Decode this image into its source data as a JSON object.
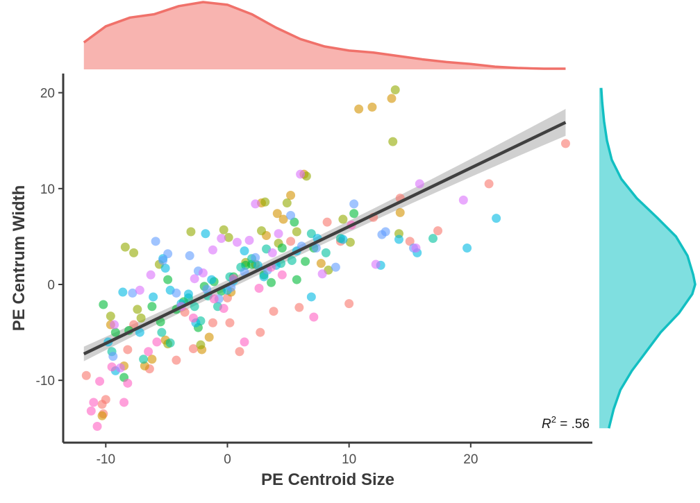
{
  "chart_data": {
    "type": "scatter",
    "xlabel": "PE Centroid Size",
    "ylabel": "PE Centrum Width",
    "xlim": [
      -13.5,
      30
    ],
    "ylim": [
      -16.5,
      22
    ],
    "x_ticks": [
      -10,
      0,
      10,
      20
    ],
    "x_tick_labels": [
      "-10",
      "0",
      "10",
      "20"
    ],
    "y_ticks": [
      -10,
      0,
      10,
      20
    ],
    "y_tick_labels": [
      "-10",
      "0",
      "10",
      "20"
    ],
    "grid": false,
    "legend": "none",
    "annotation": {
      "prefix": "R",
      "superscript": "2",
      "suffix": " = .56"
    },
    "regression": {
      "x_range": [
        -11.8,
        27.8
      ],
      "intercept": -0.05,
      "slope": 0.61,
      "ci_halfwidth_at_ends": 1.4,
      "ci_halfwidth_at_mean": 0.5,
      "color": "#404040",
      "ci_color": "#c8c8c8"
    },
    "marginal_x": {
      "type": "density",
      "fill": "#f8b4b0",
      "stroke": "#f0716a",
      "x": [
        -11.8,
        -10,
        -8,
        -6,
        -4,
        -2,
        0,
        2,
        4,
        6,
        8,
        10,
        12,
        14,
        16,
        18,
        20,
        22,
        24,
        26,
        27.8
      ],
      "density": [
        0.4,
        0.64,
        0.77,
        0.82,
        0.94,
        1.0,
        0.96,
        0.82,
        0.62,
        0.45,
        0.34,
        0.28,
        0.25,
        0.2,
        0.15,
        0.11,
        0.08,
        0.04,
        0.02,
        0.01,
        0.01
      ]
    },
    "marginal_y": {
      "type": "density",
      "fill": "#7fdfe0",
      "stroke": "#12bfc2",
      "y": [
        20.5,
        19,
        17,
        15,
        13,
        11,
        9,
        7,
        5,
        3,
        1,
        0,
        -1,
        -3,
        -5,
        -7,
        -9,
        -11,
        -13,
        -15
      ],
      "density": [
        0.02,
        0.03,
        0.05,
        0.08,
        0.13,
        0.23,
        0.39,
        0.6,
        0.8,
        0.92,
        0.98,
        1.0,
        0.97,
        0.83,
        0.64,
        0.49,
        0.34,
        0.22,
        0.15,
        0.1
      ]
    },
    "point_colors": [
      "#f8766d",
      "#d39200",
      "#93aa00",
      "#00ba38",
      "#00c19f",
      "#00b9e3",
      "#619cff",
      "#db72fb",
      "#ff61c3"
    ],
    "series": [
      {
        "name": "",
        "points": [
          [
            -11.6,
            -9.5
          ],
          [
            -10.3,
            -12.5
          ],
          [
            -10.0,
            -12.0
          ],
          [
            -10.2,
            -13.5
          ],
          [
            -8.2,
            -6.8
          ],
          [
            -7.7,
            -4.2
          ],
          [
            -6.4,
            -8.8
          ],
          [
            -4.2,
            -7.9
          ],
          [
            -3.5,
            -2.9
          ],
          [
            -2.8,
            -6.7
          ],
          [
            -1.2,
            -4.0
          ],
          [
            0.0,
            -1.4
          ],
          [
            0.2,
            -4.0
          ],
          [
            1.0,
            -7.0
          ],
          [
            2.7,
            -5.0
          ],
          [
            3.8,
            -2.8
          ],
          [
            5.2,
            4.5
          ],
          [
            5.9,
            -2.4
          ],
          [
            8.2,
            6.5
          ],
          [
            9.3,
            4.5
          ],
          [
            10.0,
            -2.0
          ],
          [
            12.0,
            7.0
          ],
          [
            14.2,
            9.0
          ],
          [
            15.0,
            4.5
          ],
          [
            17.3,
            5.6
          ],
          [
            21.5,
            10.5
          ],
          [
            27.8,
            14.7
          ]
        ]
      },
      {
        "name": "",
        "points": [
          [
            -10.3,
            -13.7
          ],
          [
            -9.6,
            -4.2
          ],
          [
            -8.5,
            -8.5
          ],
          [
            -6.8,
            -8.5
          ],
          [
            -6.2,
            -7.8
          ],
          [
            -5.1,
            -5.8
          ],
          [
            -2.1,
            -6.8
          ],
          [
            -1.5,
            -5.5
          ],
          [
            0.3,
            -0.8
          ],
          [
            2.3,
            2.1
          ],
          [
            2.8,
            8.5
          ],
          [
            3.2,
            5.1
          ],
          [
            4.1,
            7.4
          ],
          [
            4.6,
            6.8
          ],
          [
            5.2,
            9.3
          ],
          [
            6.3,
            11.5
          ],
          [
            7.7,
            2.2
          ],
          [
            10.8,
            18.3
          ],
          [
            11.9,
            18.5
          ],
          [
            13.5,
            19.4
          ],
          [
            14.2,
            7.5
          ]
        ]
      },
      {
        "name": "",
        "points": [
          [
            -9.6,
            -3.3
          ],
          [
            -8.4,
            3.9
          ],
          [
            -7.7,
            3.3
          ],
          [
            -7.4,
            -2.6
          ],
          [
            -7.1,
            -3.5
          ],
          [
            -5.6,
            2.1
          ],
          [
            -4.9,
            -6.2
          ],
          [
            -3.0,
            5.5
          ],
          [
            -2.2,
            -6.3
          ],
          [
            -0.3,
            5.7
          ],
          [
            0.1,
            4.9
          ],
          [
            1.5,
            2.3
          ],
          [
            2.8,
            5.6
          ],
          [
            3.1,
            8.6
          ],
          [
            4.2,
            4.3
          ],
          [
            4.9,
            8.5
          ],
          [
            5.7,
            5.5
          ],
          [
            6.5,
            11.3
          ],
          [
            8.3,
            1.5
          ],
          [
            9.5,
            6.8
          ],
          [
            10.1,
            4.4
          ],
          [
            13.6,
            14.9
          ],
          [
            14.1,
            5.3
          ],
          [
            13.8,
            20.3
          ]
        ]
      },
      {
        "name": "",
        "points": [
          [
            -10.2,
            -2.1
          ],
          [
            -9.2,
            -5.0
          ],
          [
            -8.5,
            -9.7
          ],
          [
            -8.1,
            -4.8
          ],
          [
            -6.2,
            -2.3
          ],
          [
            -5.5,
            -3.9
          ],
          [
            -4.9,
            0.5
          ],
          [
            -4.2,
            -2.6
          ],
          [
            -3.6,
            -1.8
          ],
          [
            -2.4,
            -4.5
          ],
          [
            -1.9,
            -0.2
          ],
          [
            -1.1,
            0.3
          ],
          [
            -0.5,
            -0.7
          ],
          [
            0.5,
            0.8
          ],
          [
            1.5,
            2.0
          ],
          [
            2.0,
            2.1
          ],
          [
            3.0,
            1.0
          ],
          [
            3.6,
            0.2
          ],
          [
            4.5,
            3.8
          ],
          [
            5.5,
            6.5
          ],
          [
            5.7,
            0.5
          ],
          [
            6.4,
            2.4
          ],
          [
            7.1,
            3.8
          ],
          [
            10.4,
            7.4
          ]
        ]
      },
      {
        "name": "",
        "points": [
          [
            -9.5,
            -7.0
          ],
          [
            -6.9,
            -7.8
          ],
          [
            -5.4,
            -5.0
          ],
          [
            -4.7,
            -6.1
          ],
          [
            -3.2,
            -1.4
          ],
          [
            -2.7,
            -2.3
          ],
          [
            -2.2,
            -3.8
          ],
          [
            -1.6,
            -1.2
          ],
          [
            -0.8,
            -2.3
          ],
          [
            0.2,
            0.8
          ],
          [
            1.1,
            1.8
          ],
          [
            2.0,
            2.7
          ],
          [
            3.2,
            3.7
          ],
          [
            4.4,
            2.2
          ],
          [
            5.3,
            2.5
          ],
          [
            6.9,
            5.3
          ],
          [
            8.1,
            3.3
          ],
          [
            9.3,
            4.8
          ],
          [
            16.9,
            4.8
          ]
        ]
      },
      {
        "name": "",
        "points": [
          [
            -9.8,
            -6.0
          ],
          [
            -9.2,
            -9.0
          ],
          [
            -8.6,
            -0.8
          ],
          [
            -7.2,
            -5.0
          ],
          [
            -6.1,
            -1.3
          ],
          [
            -5.3,
            2.7
          ],
          [
            -5.1,
            1.7
          ],
          [
            -4.7,
            -0.6
          ],
          [
            -3.8,
            -2.0
          ],
          [
            -3.2,
            -1.0
          ],
          [
            -2.6,
            -4.0
          ],
          [
            -1.8,
            5.3
          ],
          [
            -1.3,
            0.5
          ],
          [
            0.0,
            -0.6
          ],
          [
            0.5,
            0.4
          ],
          [
            1.4,
            3.5
          ],
          [
            2.5,
            2.0
          ],
          [
            3.0,
            0.8
          ],
          [
            4.0,
            2.0
          ],
          [
            5.7,
            3.5
          ],
          [
            6.9,
            -1.3
          ],
          [
            7.4,
            4.8
          ],
          [
            9.5,
            4.7
          ],
          [
            12.6,
            2.0
          ],
          [
            14.1,
            4.7
          ],
          [
            15.6,
            3.3
          ],
          [
            19.7,
            3.8
          ],
          [
            22.1,
            6.9
          ]
        ]
      },
      {
        "name": "",
        "points": [
          [
            -9.4,
            -7.5
          ],
          [
            -7.8,
            -0.9
          ],
          [
            -5.9,
            4.5
          ],
          [
            -5.3,
            2.5
          ],
          [
            -4.9,
            3.2
          ],
          [
            -4.2,
            -0.9
          ],
          [
            -3.1,
            3.0
          ],
          [
            -2.4,
            1.4
          ],
          [
            -1.7,
            -0.5
          ],
          [
            -0.7,
            -1.5
          ],
          [
            0.3,
            -0.3
          ],
          [
            1.4,
            1.3
          ],
          [
            2.3,
            2.8
          ],
          [
            3.3,
            1.5
          ],
          [
            5.2,
            7.2
          ],
          [
            6.1,
            4.0
          ],
          [
            7.3,
            3.8
          ],
          [
            8.9,
            1.8
          ],
          [
            10.4,
            8.4
          ],
          [
            12.7,
            5.2
          ],
          [
            13.0,
            5.5
          ],
          [
            15.3,
            3.8
          ]
        ]
      },
      {
        "name": "",
        "points": [
          [
            -9.3,
            -4.2
          ],
          [
            -8.8,
            -8.7
          ],
          [
            -7.2,
            -0.6
          ],
          [
            -6.3,
            1.0
          ],
          [
            -3.8,
            -2.3
          ],
          [
            -2.7,
            0.6
          ],
          [
            -2.0,
            1.2
          ],
          [
            -1.2,
            3.6
          ],
          [
            -0.5,
            4.8
          ],
          [
            0.8,
            4.4
          ],
          [
            1.8,
            4.6
          ],
          [
            2.3,
            8.4
          ],
          [
            3.7,
            3.3
          ],
          [
            4.2,
            5.3
          ],
          [
            6.0,
            11.5
          ],
          [
            7.8,
            1.1
          ],
          [
            12.2,
            2.1
          ],
          [
            15.5,
            3.8
          ],
          [
            15.8,
            10.5
          ],
          [
            19.4,
            8.8
          ]
        ]
      },
      {
        "name": "",
        "points": [
          [
            -11.2,
            -13.2
          ],
          [
            -11.0,
            -12.3
          ],
          [
            -10.7,
            -14.8
          ],
          [
            -10.5,
            -10.1
          ],
          [
            -9.5,
            -8.6
          ],
          [
            -8.5,
            -12.3
          ],
          [
            -8.2,
            -10.3
          ],
          [
            -6.5,
            -7.0
          ],
          [
            -5.8,
            -6.0
          ],
          [
            -2.8,
            -3.5
          ],
          [
            -1.1,
            -1.5
          ],
          [
            -0.3,
            -2.5
          ],
          [
            0.5,
            0.6
          ],
          [
            1.4,
            -6.0
          ],
          [
            2.6,
            -0.4
          ],
          [
            3.6,
            1.8
          ],
          [
            4.5,
            1.0
          ],
          [
            7.1,
            -3.4
          ],
          [
            10.2,
            6.2
          ]
        ]
      }
    ]
  }
}
